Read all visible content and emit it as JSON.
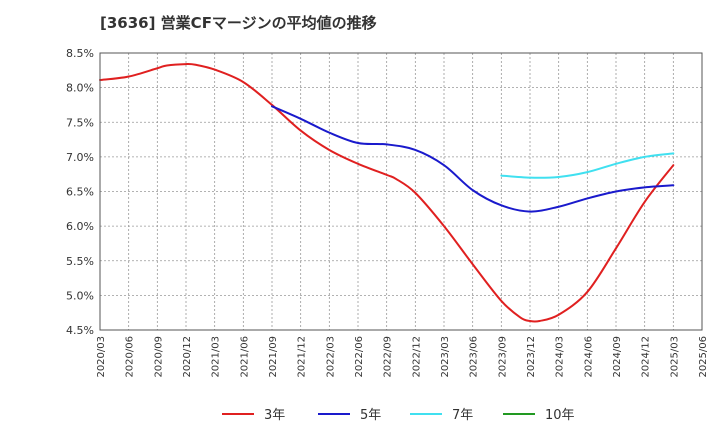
{
  "chart_data": {
    "type": "line",
    "title": "[3636]  営業CFマージンの平均値の推移",
    "xlabel": "",
    "ylabel": "",
    "y_format": "percent",
    "ylim": [
      4.5,
      8.5
    ],
    "yticks": [
      4.5,
      5.0,
      5.5,
      6.0,
      6.5,
      7.0,
      7.5,
      8.0,
      8.5
    ],
    "ytick_labels": [
      "4.5%",
      "5.0%",
      "5.5%",
      "6.0%",
      "6.5%",
      "7.0%",
      "7.5%",
      "8.0%",
      "8.5%"
    ],
    "x_range": [
      "2020/03",
      "2025/06"
    ],
    "xtick_labels": [
      "2020/03",
      "2020/06",
      "2020/09",
      "2020/12",
      "2021/03",
      "2021/06",
      "2021/09",
      "2021/12",
      "2022/03",
      "2022/06",
      "2022/09",
      "2022/12",
      "2023/03",
      "2023/06",
      "2023/09",
      "2023/12",
      "2024/03",
      "2024/06",
      "2024/09",
      "2024/12",
      "2025/03",
      "2025/06"
    ],
    "grid": true,
    "legend_position": "bottom",
    "series": [
      {
        "name": "3年",
        "color": "#e02020",
        "points": [
          [
            "2020/03",
            8.11
          ],
          [
            "2020/06",
            8.16
          ],
          [
            "2020/09",
            8.28
          ],
          [
            "2020/10",
            8.32
          ],
          [
            "2020/12",
            8.34
          ],
          [
            "2021/01",
            8.33
          ],
          [
            "2021/03",
            8.26
          ],
          [
            "2021/06",
            8.08
          ],
          [
            "2021/09",
            7.75
          ],
          [
            "2021/12",
            7.38
          ],
          [
            "2022/03",
            7.1
          ],
          [
            "2022/06",
            6.9
          ],
          [
            "2022/09",
            6.74
          ],
          [
            "2022/10",
            6.68
          ],
          [
            "2022/12",
            6.48
          ],
          [
            "2023/03",
            6.0
          ],
          [
            "2023/06",
            5.45
          ],
          [
            "2023/09",
            4.92
          ],
          [
            "2023/11",
            4.68
          ],
          [
            "2023/12",
            4.63
          ],
          [
            "2024/01",
            4.63
          ],
          [
            "2024/03",
            4.72
          ],
          [
            "2024/06",
            5.05
          ],
          [
            "2024/09",
            5.68
          ],
          [
            "2024/12",
            6.35
          ],
          [
            "2025/03",
            6.88
          ]
        ]
      },
      {
        "name": "5年",
        "color": "#1a1acc",
        "points": [
          [
            "2021/09",
            7.73
          ],
          [
            "2021/12",
            7.55
          ],
          [
            "2022/03",
            7.35
          ],
          [
            "2022/06",
            7.2
          ],
          [
            "2022/09",
            7.18
          ],
          [
            "2022/12",
            7.1
          ],
          [
            "2023/03",
            6.88
          ],
          [
            "2023/06",
            6.52
          ],
          [
            "2023/09",
            6.3
          ],
          [
            "2023/12",
            6.21
          ],
          [
            "2024/03",
            6.28
          ],
          [
            "2024/06",
            6.4
          ],
          [
            "2024/09",
            6.5
          ],
          [
            "2024/12",
            6.56
          ],
          [
            "2025/03",
            6.59
          ]
        ]
      },
      {
        "name": "7年",
        "color": "#40e0f0",
        "points": [
          [
            "2023/09",
            6.73
          ],
          [
            "2023/12",
            6.7
          ],
          [
            "2024/03",
            6.71
          ],
          [
            "2024/06",
            6.78
          ],
          [
            "2024/09",
            6.9
          ],
          [
            "2024/12",
            7.0
          ],
          [
            "2025/03",
            7.05
          ]
        ]
      },
      {
        "name": "10年",
        "color": "#229922",
        "points": []
      }
    ]
  }
}
